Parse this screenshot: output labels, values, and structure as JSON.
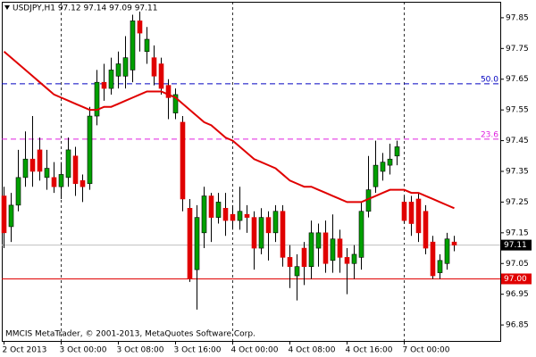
{
  "chart_data": {
    "type": "candlestick",
    "title": "USDJPY,H1  97.12 97.14 97.09 97.11",
    "footer": "MMCIS MetaTrader, © 2001-2013, MetaQuotes Software Corp.",
    "categories": [
      "2 Oct 2013",
      null,
      null,
      null,
      null,
      null,
      null,
      null,
      "3 Oct 00:00",
      null,
      null,
      null,
      null,
      null,
      null,
      null,
      "3 Oct 08:00",
      null,
      null,
      null,
      null,
      null,
      null,
      null,
      "3 Oct 16:00",
      null,
      null,
      null,
      null,
      null,
      null,
      null,
      "4 Oct 00:00",
      null,
      null,
      null,
      null,
      null,
      null,
      null,
      "4 Oct 08:00",
      null,
      null,
      null,
      null,
      null,
      null,
      null,
      "4 Oct 16:00",
      null,
      null,
      null,
      null,
      null,
      null,
      null,
      "7 Oct 00:00",
      null,
      null,
      null,
      null,
      null,
      null,
      null
    ],
    "open": [
      97.27,
      97.17,
      97.24,
      97.33,
      97.39,
      97.42,
      97.33,
      97.33,
      97.3,
      97.33,
      97.4,
      97.32,
      97.31,
      97.53,
      97.64,
      97.62,
      97.66,
      97.66,
      97.68,
      97.84,
      97.74,
      97.72,
      97.7,
      97.63,
      97.54,
      97.51,
      97.23,
      97.03,
      97.15,
      97.27,
      97.2,
      97.23,
      97.21,
      97.19,
      97.21,
      97.2,
      97.1,
      97.2,
      97.15,
      97.22,
      97.07,
      97.01,
      97.1,
      97.04,
      97.1,
      97.15,
      97.06,
      97.13,
      97.07,
      97.05,
      97.07,
      97.22,
      97.3,
      97.35,
      97.37,
      97.4,
      97.25,
      97.25,
      97.26,
      97.22,
      97.12,
      97.02,
      97.05,
      97.12
    ],
    "high": [
      97.3,
      97.28,
      97.42,
      97.48,
      97.53,
      97.46,
      97.42,
      97.38,
      97.38,
      97.46,
      97.43,
      97.34,
      97.56,
      97.68,
      97.7,
      97.72,
      97.74,
      97.79,
      97.86,
      97.87,
      97.82,
      97.76,
      97.72,
      97.65,
      97.62,
      97.53,
      97.26,
      97.24,
      97.3,
      97.28,
      97.28,
      97.28,
      97.24,
      97.3,
      97.24,
      97.22,
      97.23,
      97.22,
      97.24,
      97.24,
      97.11,
      97.08,
      97.12,
      97.19,
      97.18,
      97.19,
      97.21,
      97.16,
      97.1,
      97.11,
      97.25,
      97.4,
      97.45,
      97.41,
      97.44,
      97.45,
      97.27,
      97.27,
      97.28,
      97.24,
      97.14,
      97.08,
      97.15,
      97.14
    ],
    "low": [
      97.1,
      97.12,
      97.22,
      97.3,
      97.3,
      97.32,
      97.29,
      97.28,
      97.26,
      97.3,
      97.27,
      97.25,
      97.29,
      97.5,
      97.58,
      97.6,
      97.62,
      97.62,
      97.64,
      97.74,
      97.7,
      97.63,
      97.6,
      97.52,
      97.52,
      97.22,
      96.99,
      96.9,
      97.1,
      97.12,
      97.18,
      97.14,
      97.16,
      97.16,
      97.15,
      97.03,
      97.08,
      97.06,
      97.12,
      97.04,
      96.97,
      96.93,
      96.98,
      97.0,
      97.04,
      97.02,
      97.02,
      97.02,
      96.95,
      97.0,
      97.03,
      97.2,
      97.28,
      97.32,
      97.34,
      97.37,
      97.18,
      97.14,
      97.12,
      97.08,
      97.0,
      97.0,
      97.03,
      97.09
    ],
    "close": [
      97.15,
      97.24,
      97.33,
      97.39,
      97.35,
      97.35,
      97.36,
      97.3,
      97.34,
      97.42,
      97.31,
      97.3,
      97.53,
      97.64,
      97.62,
      97.68,
      97.7,
      97.72,
      97.84,
      97.8,
      97.78,
      97.66,
      97.62,
      97.59,
      97.6,
      97.26,
      97.0,
      97.2,
      97.27,
      97.2,
      97.25,
      97.19,
      97.19,
      97.22,
      97.2,
      97.1,
      97.2,
      97.15,
      97.22,
      97.07,
      97.04,
      97.04,
      97.04,
      97.15,
      97.15,
      97.05,
      97.13,
      97.07,
      97.05,
      97.08,
      97.22,
      97.29,
      97.37,
      97.38,
      97.39,
      97.43,
      97.19,
      97.18,
      97.15,
      97.1,
      97.01,
      97.06,
      97.13,
      97.11
    ],
    "up_color": "#00a000",
    "down_color": "#e00000",
    "moving_average": {
      "color": "#e00000",
      "values": [
        97.74,
        97.72,
        97.7,
        97.68,
        97.66,
        97.64,
        97.62,
        97.6,
        97.59,
        97.58,
        97.57,
        97.56,
        97.55,
        97.55,
        97.56,
        97.56,
        97.57,
        97.58,
        97.59,
        97.6,
        97.61,
        97.61,
        97.61,
        97.6,
        97.59,
        97.57,
        97.55,
        97.53,
        97.51,
        97.5,
        97.48,
        97.46,
        97.45,
        97.43,
        97.41,
        97.39,
        97.38,
        97.37,
        97.36,
        97.34,
        97.32,
        97.31,
        97.3,
        97.3,
        97.29,
        97.28,
        97.27,
        97.26,
        97.25,
        97.25,
        97.25,
        97.26,
        97.27,
        97.28,
        97.29,
        97.29,
        97.29,
        97.28,
        97.28,
        97.27,
        97.26,
        97.25,
        97.24,
        97.23
      ]
    },
    "levels": [
      {
        "label": "50.0",
        "value": 97.635,
        "color": "#0000c0"
      },
      {
        "label": "23.6",
        "value": 97.455,
        "color": "#e020e0"
      }
    ],
    "price_lines": [
      {
        "value": 97.11,
        "color": "#c0c0c0",
        "box": "#000000"
      },
      {
        "value": 97,
        "label": "97.00",
        "color": "#e00000",
        "box": "#e00000"
      }
    ],
    "ylim": [
      96.798,
      97.902
    ],
    "yticks": [
      96.85,
      96.95,
      97.05,
      97.15,
      97.25,
      97.35,
      97.45,
      97.55,
      97.65,
      97.75,
      97.85
    ]
  }
}
